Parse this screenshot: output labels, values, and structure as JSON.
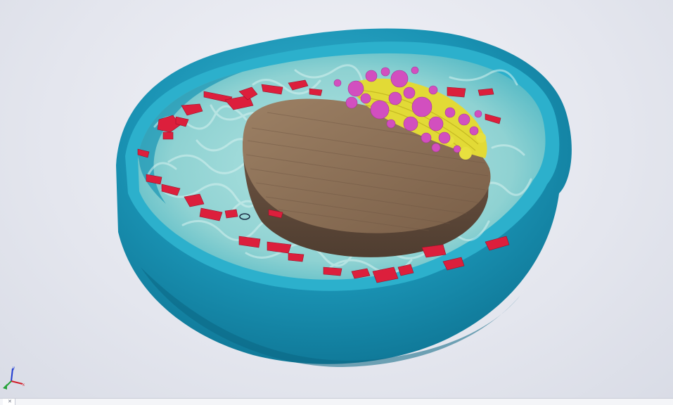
{
  "viewport": {
    "model": "cell cutaway",
    "background": "#e6e8ef",
    "colors": {
      "membrane": "#1a8fb0",
      "membrane_inner": "#2aa7c4",
      "cytoplasm": "#9ad8d6",
      "nucleus": "#8a6e55",
      "nucleus_side": "#6e5643",
      "endoplasmic_reticulum": "#e02040",
      "golgi": "#e4dc3a",
      "vesicles": "#d24fbf"
    }
  },
  "view_triad": {
    "axes": [
      "x",
      "y",
      "z"
    ]
  },
  "statusbar": {
    "tabs": [
      {
        "label": "",
        "active": true
      },
      {
        "label": "",
        "active": false
      }
    ]
  }
}
